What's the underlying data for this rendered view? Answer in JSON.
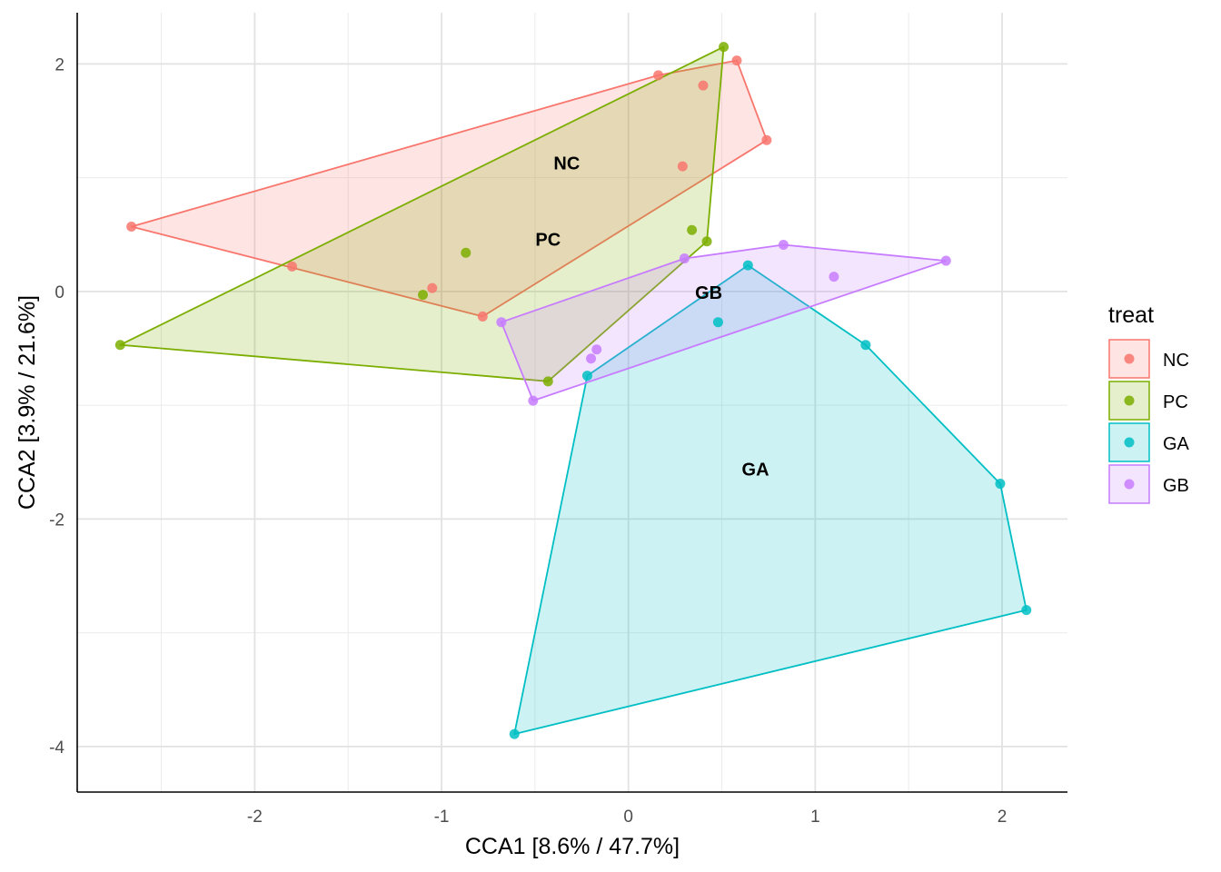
{
  "chart_data": {
    "type": "scatter",
    "xlabel": "CCA1 [8.6% / 47.7%]",
    "ylabel": "CCA2 [3.9% / 21.6%]",
    "xlim": [
      -2.95,
      2.35
    ],
    "ylim": [
      -4.4,
      2.45
    ],
    "x_ticks": [
      -2,
      -1,
      0,
      1,
      2
    ],
    "x_tick_labels": [
      "-2",
      "-1",
      "0",
      "1",
      "2"
    ],
    "y_ticks": [
      -4,
      -2,
      0,
      2
    ],
    "y_tick_labels": [
      "-4",
      "-2",
      "0",
      "2"
    ],
    "grid": true,
    "legend": {
      "title": "treat",
      "position": "right"
    },
    "series": [
      {
        "name": "NC",
        "color": "#F8766D",
        "points": [
          [
            -2.66,
            0.57
          ],
          [
            -1.8,
            0.22
          ],
          [
            -1.05,
            0.03
          ],
          [
            -0.78,
            -0.22
          ],
          [
            0.16,
            1.9
          ],
          [
            0.4,
            1.81
          ],
          [
            0.58,
            2.03
          ],
          [
            0.74,
            1.33
          ],
          [
            0.29,
            1.1
          ]
        ],
        "hull": [
          [
            -2.66,
            0.57
          ],
          [
            0.16,
            1.9
          ],
          [
            0.58,
            2.03
          ],
          [
            0.74,
            1.33
          ],
          [
            -0.78,
            -0.22
          ]
        ],
        "label": "NC",
        "label_pos": [
          -0.33,
          1.13
        ]
      },
      {
        "name": "PC",
        "color": "#7CAE00",
        "points": [
          [
            -2.72,
            -0.47
          ],
          [
            -1.1,
            -0.03
          ],
          [
            -0.87,
            0.34
          ],
          [
            -0.43,
            -0.79
          ],
          [
            0.34,
            0.54
          ],
          [
            0.42,
            0.44
          ],
          [
            0.51,
            2.15
          ]
        ],
        "hull": [
          [
            -2.72,
            -0.47
          ],
          [
            0.51,
            2.15
          ],
          [
            0.42,
            0.44
          ],
          [
            -0.43,
            -0.79
          ]
        ],
        "label": "PC",
        "label_pos": [
          -0.43,
          0.46
        ]
      },
      {
        "name": "GA",
        "color": "#00BFC4",
        "points": [
          [
            -0.61,
            -3.89
          ],
          [
            -0.22,
            -0.74
          ],
          [
            0.48,
            -0.27
          ],
          [
            0.64,
            0.23
          ],
          [
            1.27,
            -0.47
          ],
          [
            1.99,
            -1.69
          ],
          [
            2.13,
            -2.8
          ]
        ],
        "hull": [
          [
            -0.61,
            -3.89
          ],
          [
            -0.22,
            -0.74
          ],
          [
            0.64,
            0.23
          ],
          [
            1.27,
            -0.47
          ],
          [
            1.99,
            -1.69
          ],
          [
            2.13,
            -2.8
          ]
        ],
        "label": "GA",
        "label_pos": [
          0.68,
          -1.56
        ]
      },
      {
        "name": "GB",
        "color": "#C77CFF",
        "points": [
          [
            -0.68,
            -0.27
          ],
          [
            -0.51,
            -0.96
          ],
          [
            -0.2,
            -0.59
          ],
          [
            -0.17,
            -0.51
          ],
          [
            0.3,
            0.29
          ],
          [
            0.83,
            0.41
          ],
          [
            1.1,
            0.13
          ],
          [
            1.7,
            0.27
          ]
        ],
        "hull": [
          [
            -0.68,
            -0.27
          ],
          [
            0.3,
            0.29
          ],
          [
            0.83,
            0.41
          ],
          [
            1.7,
            0.27
          ],
          [
            -0.51,
            -0.96
          ]
        ],
        "label": "GB",
        "label_pos": [
          0.43,
          -0.01
        ]
      }
    ]
  }
}
